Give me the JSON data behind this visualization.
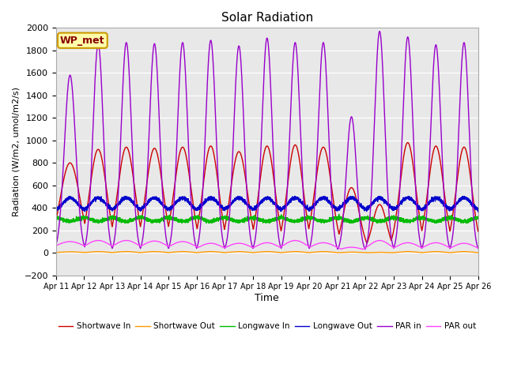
{
  "title": "Solar Radiation",
  "xlabel": "Time",
  "ylabel": "Radiation (W/m2, umol/m2/s)",
  "ylim": [
    -200,
    2000
  ],
  "xlim": [
    0,
    15
  ],
  "yticks": [
    -200,
    0,
    200,
    400,
    600,
    800,
    1000,
    1200,
    1400,
    1600,
    1800,
    2000
  ],
  "xtick_labels": [
    "Apr 11",
    "Apr 12",
    "Apr 13",
    "Apr 14",
    "Apr 15",
    "Apr 16",
    "Apr 17",
    "Apr 18",
    "Apr 19",
    "Apr 20",
    "Apr 21",
    "Apr 22",
    "Apr 23",
    "Apr 24",
    "Apr 25",
    "Apr 26"
  ],
  "station_label": "WP_met",
  "colors": {
    "shortwave_in": "#cc0000",
    "shortwave_out": "#ff9900",
    "longwave_in": "#00bb00",
    "longwave_out": "#0000cc",
    "par_in": "#9900cc",
    "par_out": "#ff44ff"
  },
  "legend_labels": [
    "Shortwave In",
    "Shortwave Out",
    "Longwave In",
    "Longwave Out",
    "PAR in",
    "PAR out"
  ],
  "fig_facecolor": "#ffffff",
  "plot_facecolor": "#e8e8e8",
  "n_days": 15,
  "pts_per_day": 288,
  "shortwave_in_peaks": [
    800,
    920,
    940,
    930,
    940,
    950,
    900,
    950,
    960,
    940,
    580,
    430,
    980,
    950,
    940
  ],
  "shortwave_in_widths": [
    0.35,
    0.3,
    0.3,
    0.3,
    0.3,
    0.28,
    0.3,
    0.28,
    0.28,
    0.3,
    0.28,
    0.25,
    0.28,
    0.28,
    0.28
  ],
  "par_in_peaks": [
    1580,
    1860,
    1870,
    1860,
    1870,
    1890,
    1840,
    1910,
    1870,
    1870,
    1210,
    1970,
    1920,
    1850,
    1870
  ],
  "par_in_widths": [
    0.2,
    0.18,
    0.18,
    0.18,
    0.18,
    0.18,
    0.18,
    0.18,
    0.18,
    0.18,
    0.18,
    0.18,
    0.18,
    0.18,
    0.18
  ],
  "par_out_peaks": [
    100,
    110,
    110,
    105,
    100,
    85,
    85,
    90,
    110,
    90,
    50,
    110,
    90,
    90,
    85
  ],
  "par_out_widths": [
    0.35,
    0.3,
    0.3,
    0.3,
    0.3,
    0.28,
    0.3,
    0.28,
    0.28,
    0.3,
    0.28,
    0.25,
    0.28,
    0.28,
    0.28
  ],
  "longwave_in_base": 320,
  "longwave_in_dip": 40,
  "longwave_out_base": 370,
  "longwave_out_peak": 120
}
